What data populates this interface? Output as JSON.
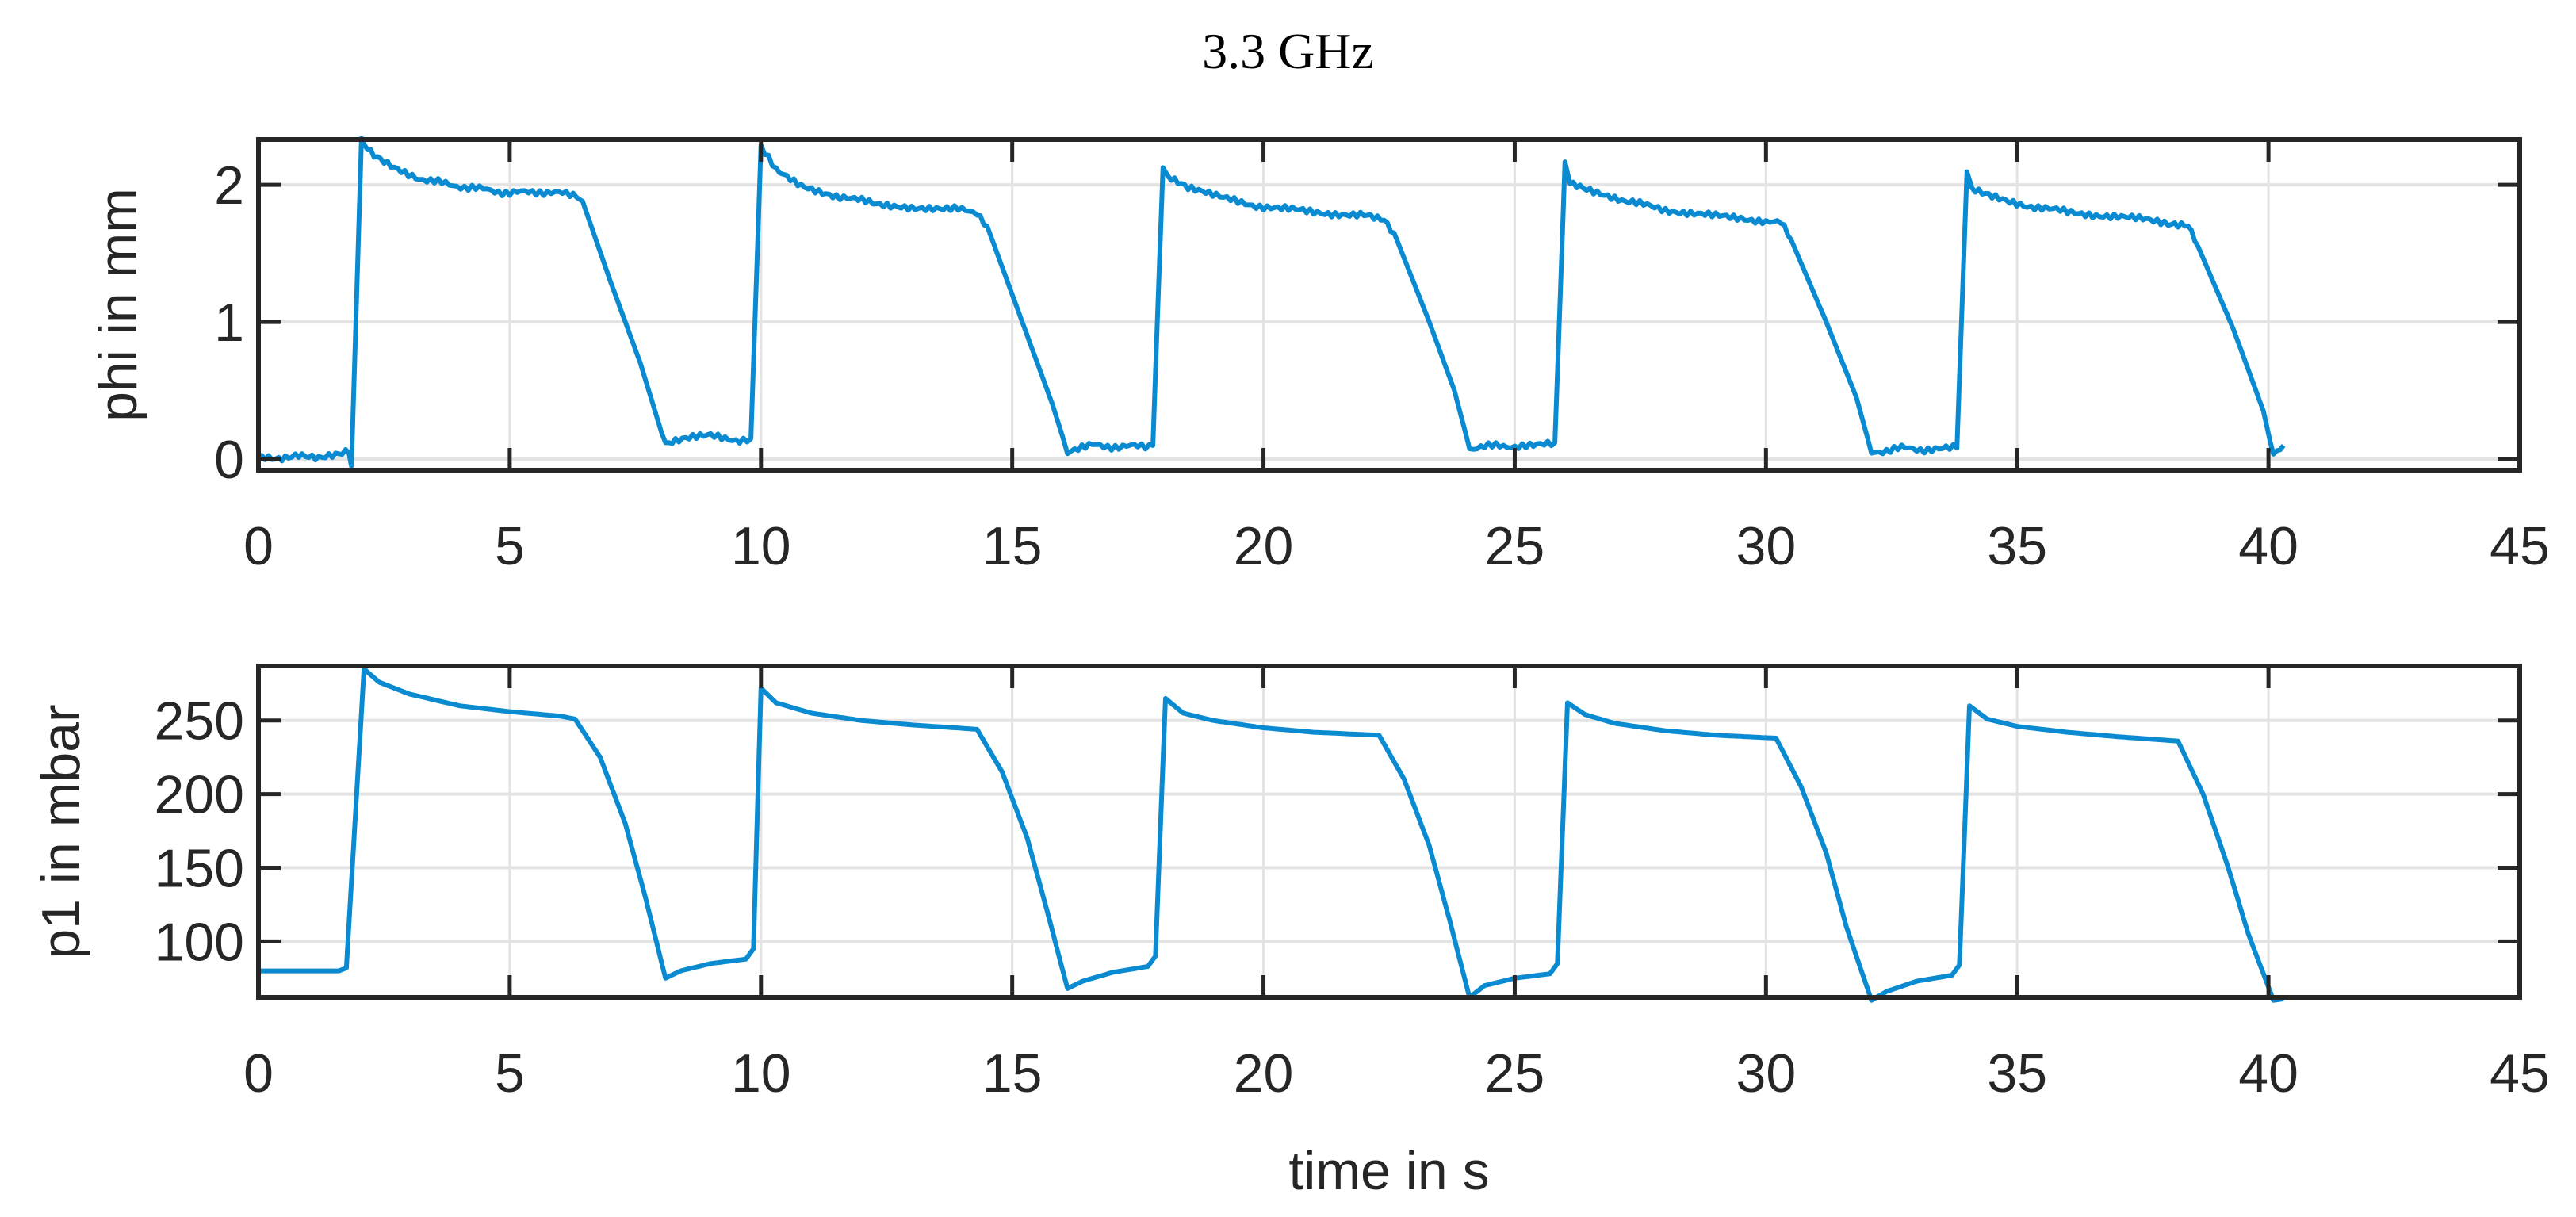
{
  "figure": {
    "title": "3.3 GHz",
    "line_color": "#0a8ad0",
    "grid_color": "#e3e3e3",
    "axis_color": "#262626"
  },
  "chart_data": [
    {
      "type": "line",
      "title": "3.3 GHz",
      "xlabel": "",
      "ylabel": "phi in mm",
      "xlim": [
        0,
        45
      ],
      "ylim": [
        -0.08,
        2.33
      ],
      "xticks": [
        0,
        5,
        10,
        15,
        20,
        25,
        30,
        35,
        40,
        45
      ],
      "yticks": [
        0,
        1,
        2
      ],
      "grid": true,
      "series": [
        {
          "name": "phi",
          "x": [
            0,
            0.4,
            0.8,
            1.2,
            1.6,
            1.8,
            1.85,
            2.05,
            2.3,
            2.7,
            3.2,
            3.8,
            4.4,
            5.0,
            5.6,
            6.2,
            6.45,
            7.0,
            7.6,
            8.1,
            8.5,
            9.0,
            9.5,
            9.8,
            10.0,
            10.3,
            10.8,
            11.5,
            12.3,
            13.0,
            13.7,
            14.3,
            14.5,
            15.2,
            15.8,
            16.1,
            16.6,
            17.2,
            17.8,
            18.0,
            18.1,
            18.5,
            19.2,
            20.0,
            21.0,
            22.0,
            22.4,
            22.6,
            23.3,
            23.8,
            24.1,
            24.7,
            25.3,
            25.8,
            26.0,
            26.1,
            26.5,
            27.2,
            28.0,
            29.0,
            30.0,
            30.3,
            30.5,
            31.2,
            31.8,
            32.1,
            32.7,
            33.3,
            33.8,
            34.0,
            34.1,
            34.5,
            35.2,
            36.0,
            37.0,
            38.0,
            38.4,
            38.6,
            39.3,
            39.9,
            40.1,
            40.3
          ],
          "y": [
            0.02,
            0.01,
            0.04,
            0.01,
            0.03,
            0.05,
            -0.05,
            2.33,
            2.22,
            2.12,
            2.05,
            2.0,
            1.97,
            1.94,
            1.95,
            1.93,
            1.88,
            1.3,
            0.7,
            0.1,
            0.15,
            0.17,
            0.14,
            0.15,
            2.28,
            2.1,
            2.0,
            1.92,
            1.86,
            1.84,
            1.83,
            1.8,
            1.7,
            1.0,
            0.4,
            0.05,
            0.1,
            0.09,
            0.1,
            2.15,
            2.05,
            1.98,
            1.9,
            1.84,
            1.8,
            1.78,
            1.75,
            1.65,
            1.0,
            0.5,
            0.08,
            0.1,
            0.09,
            0.12,
            2.15,
            2.02,
            1.97,
            1.88,
            1.82,
            1.77,
            1.74,
            1.72,
            1.6,
            1.0,
            0.45,
            0.05,
            0.08,
            0.07,
            0.08,
            2.1,
            1.98,
            1.92,
            1.85,
            1.8,
            1.77,
            1.72,
            1.7,
            1.55,
            0.95,
            0.35,
            0.02,
            0.1
          ]
        }
      ]
    },
    {
      "type": "line",
      "title": "",
      "xlabel": "time in s",
      "ylabel": "p1 in mbar",
      "xlim": [
        0,
        45
      ],
      "ylim": [
        62,
        287
      ],
      "xticks": [
        0,
        5,
        10,
        15,
        20,
        25,
        30,
        35,
        40,
        45
      ],
      "yticks": [
        100,
        150,
        200,
        250
      ],
      "grid": true,
      "series": [
        {
          "name": "p1",
          "x": [
            0,
            1.0,
            1.6,
            1.75,
            2.1,
            2.4,
            3.0,
            4.0,
            5.0,
            6.0,
            6.3,
            6.8,
            7.3,
            7.7,
            8.1,
            8.4,
            9.0,
            9.7,
            9.85,
            10.0,
            10.3,
            11.0,
            12.0,
            13.0,
            14.3,
            14.8,
            15.3,
            15.7,
            16.1,
            16.4,
            17.0,
            17.7,
            17.85,
            18.05,
            18.4,
            19.0,
            20.0,
            21.0,
            22.3,
            22.8,
            23.3,
            23.7,
            24.1,
            24.4,
            25.0,
            25.7,
            25.85,
            26.05,
            26.4,
            27.0,
            28.0,
            29.0,
            30.2,
            30.7,
            31.2,
            31.6,
            32.1,
            32.4,
            33.0,
            33.7,
            33.85,
            34.05,
            34.4,
            35.0,
            36.0,
            37.0,
            38.2,
            38.7,
            39.2,
            39.6,
            40.1,
            40.3
          ],
          "y": [
            80,
            80,
            80,
            82,
            285,
            276,
            268,
            260,
            256,
            253,
            251,
            225,
            180,
            130,
            75,
            80,
            85,
            88,
            95,
            272,
            262,
            255,
            250,
            247,
            244,
            215,
            170,
            120,
            68,
            73,
            79,
            83,
            90,
            265,
            255,
            250,
            245,
            242,
            240,
            210,
            165,
            115,
            62,
            70,
            75,
            78,
            85,
            262,
            254,
            248,
            243,
            240,
            238,
            205,
            160,
            110,
            60,
            66,
            73,
            77,
            84,
            260,
            251,
            246,
            242,
            239,
            236,
            200,
            150,
            105,
            60,
            61
          ]
        }
      ]
    }
  ]
}
